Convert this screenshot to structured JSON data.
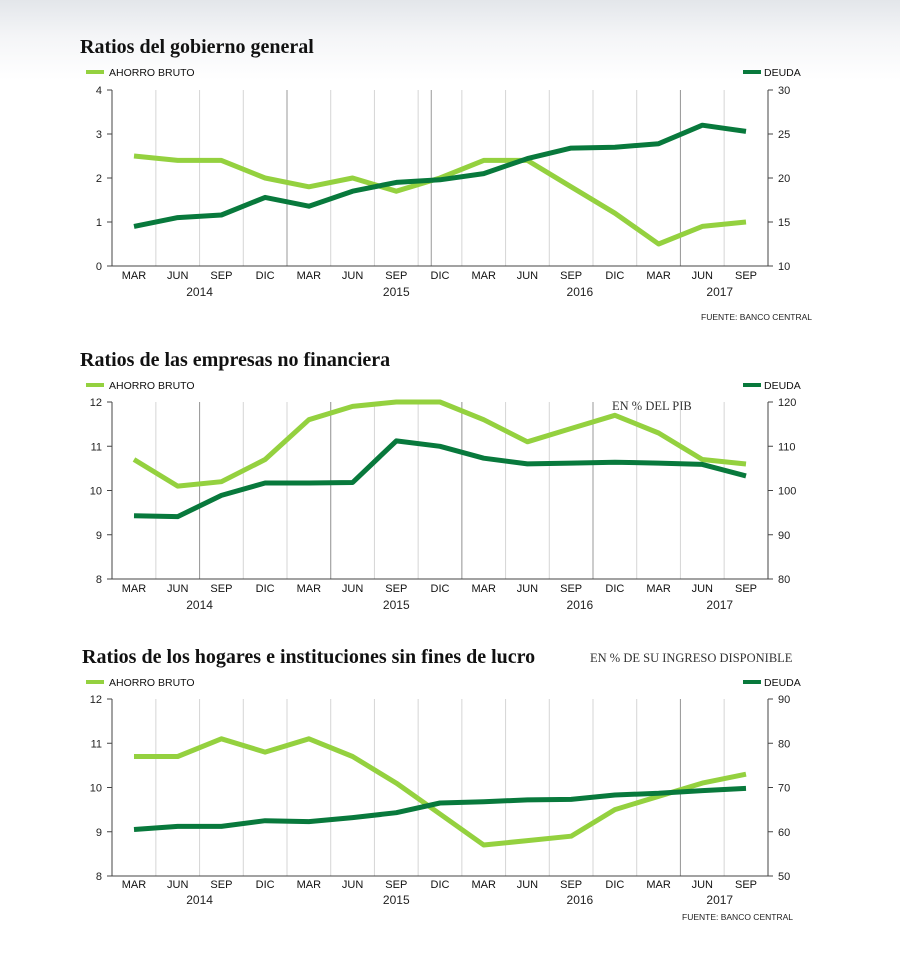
{
  "colors": {
    "ahorro": "#94d13f",
    "deuda": "#08793c",
    "grid": "#d5d5d5",
    "grid_dark": "#9a9a9a",
    "axis": "#444444"
  },
  "chart_data": [
    {
      "type": "line",
      "title": "Ratios del gobierno general",
      "subtitle": "",
      "source": "FUENTE: BANCO CENTRAL",
      "categories": [
        "MAR",
        "JUN",
        "SEP",
        "DIC",
        "MAR",
        "JUN",
        "SEP",
        "DIC",
        "MAR",
        "JUN",
        "SEP",
        "DIC",
        "MAR",
        "JUN",
        "SEP"
      ],
      "years": [
        {
          "label": "2014",
          "cat_index": 1.5
        },
        {
          "label": "2015",
          "cat_index": 6.0
        },
        {
          "label": "2016",
          "cat_index": 10.2
        },
        {
          "label": "2017",
          "cat_index": 13.4
        }
      ],
      "year_dividers": [
        3.5,
        6.8,
        12.5
      ],
      "left_axis": {
        "ticks": [
          "0",
          "1",
          "2",
          "3",
          "4"
        ],
        "ylim": [
          0,
          4
        ]
      },
      "right_axis": {
        "ticks": [
          "10",
          "15",
          "20",
          "25",
          "30"
        ],
        "ylim": [
          10,
          30
        ]
      },
      "series": [
        {
          "name": "AHORRO BRUTO",
          "axis": "left",
          "color": "#94d13f",
          "values": [
            2.5,
            2.4,
            2.4,
            2.0,
            1.8,
            2.0,
            1.7,
            2.0,
            2.4,
            2.4,
            1.8,
            1.2,
            0.5,
            0.9,
            1.0
          ]
        },
        {
          "name": "DEUDA",
          "axis": "right",
          "color": "#08793c",
          "values": [
            14.5,
            15.5,
            15.8,
            17.8,
            16.8,
            18.5,
            19.5,
            19.8,
            20.5,
            22.2,
            23.4,
            23.5,
            23.9,
            26.0,
            25.3
          ]
        }
      ]
    },
    {
      "type": "line",
      "title": "Ratios de las empresas no financiera",
      "subtitle": "EN % DEL PIB",
      "source": "",
      "categories": [
        "MAR",
        "JUN",
        "SEP",
        "DIC",
        "MAR",
        "JUN",
        "SEP",
        "DIC",
        "MAR",
        "JUN",
        "SEP",
        "DIC",
        "MAR",
        "JUN",
        "SEP"
      ],
      "years": [
        {
          "label": "2014",
          "cat_index": 1.5
        },
        {
          "label": "2015",
          "cat_index": 6.0
        },
        {
          "label": "2016",
          "cat_index": 10.2
        },
        {
          "label": "2017",
          "cat_index": 13.4
        }
      ],
      "year_dividers": [
        1.5,
        4.5,
        7.5,
        10.5
      ],
      "left_axis": {
        "ticks": [
          "8",
          "9",
          "10",
          "11",
          "12"
        ],
        "ylim": [
          8,
          12
        ]
      },
      "right_axis": {
        "ticks": [
          "80",
          "90",
          "100",
          "110",
          "120"
        ],
        "ylim": [
          80,
          120
        ]
      },
      "series": [
        {
          "name": "AHORRO BRUTO",
          "axis": "left",
          "color": "#94d13f",
          "values": [
            10.7,
            10.1,
            10.2,
            10.7,
            11.6,
            11.9,
            12.0,
            12.0,
            11.6,
            11.1,
            11.4,
            11.7,
            11.3,
            10.7,
            10.6
          ]
        },
        {
          "name": "DEUDA",
          "axis": "right",
          "color": "#08793c",
          "values": [
            94.3,
            94.1,
            98.9,
            101.7,
            101.7,
            101.8,
            111.2,
            110.0,
            107.3,
            106.0,
            106.2,
            106.4,
            106.2,
            105.9,
            103.3
          ]
        }
      ]
    },
    {
      "type": "line",
      "title": "Ratios de los hogares e instituciones sin fines de lucro",
      "subtitle": "EN % DE SU INGRESO DISPONIBLE",
      "source": "FUENTE: BANCO CENTRAL",
      "categories": [
        "MAR",
        "JUN",
        "SEP",
        "DIC",
        "MAR",
        "JUN",
        "SEP",
        "DIC",
        "MAR",
        "JUN",
        "SEP",
        "DIC",
        "MAR",
        "JUN",
        "SEP"
      ],
      "years": [
        {
          "label": "2014",
          "cat_index": 1.5
        },
        {
          "label": "2015",
          "cat_index": 6.0
        },
        {
          "label": "2016",
          "cat_index": 10.2
        },
        {
          "label": "2017",
          "cat_index": 13.4
        }
      ],
      "year_dividers": [
        12.5
      ],
      "left_axis": {
        "ticks": [
          "8",
          "9",
          "10",
          "11",
          "12"
        ],
        "ylim": [
          8,
          12
        ]
      },
      "right_axis": {
        "ticks": [
          "50",
          "60",
          "70",
          "80",
          "90"
        ],
        "ylim": [
          50,
          90
        ]
      },
      "series": [
        {
          "name": "AHORRO BRUTO",
          "axis": "left",
          "color": "#94d13f",
          "values": [
            10.7,
            10.7,
            11.1,
            10.8,
            11.1,
            10.7,
            10.1,
            9.4,
            8.7,
            8.8,
            8.9,
            9.5,
            9.8,
            10.1,
            10.3
          ]
        },
        {
          "name": "DEUDA",
          "axis": "right",
          "color": "#08793c",
          "values": [
            60.5,
            61.2,
            61.2,
            62.5,
            62.3,
            63.2,
            64.3,
            66.5,
            66.8,
            67.2,
            67.3,
            68.3,
            68.7,
            69.3,
            69.8
          ]
        }
      ]
    }
  ]
}
